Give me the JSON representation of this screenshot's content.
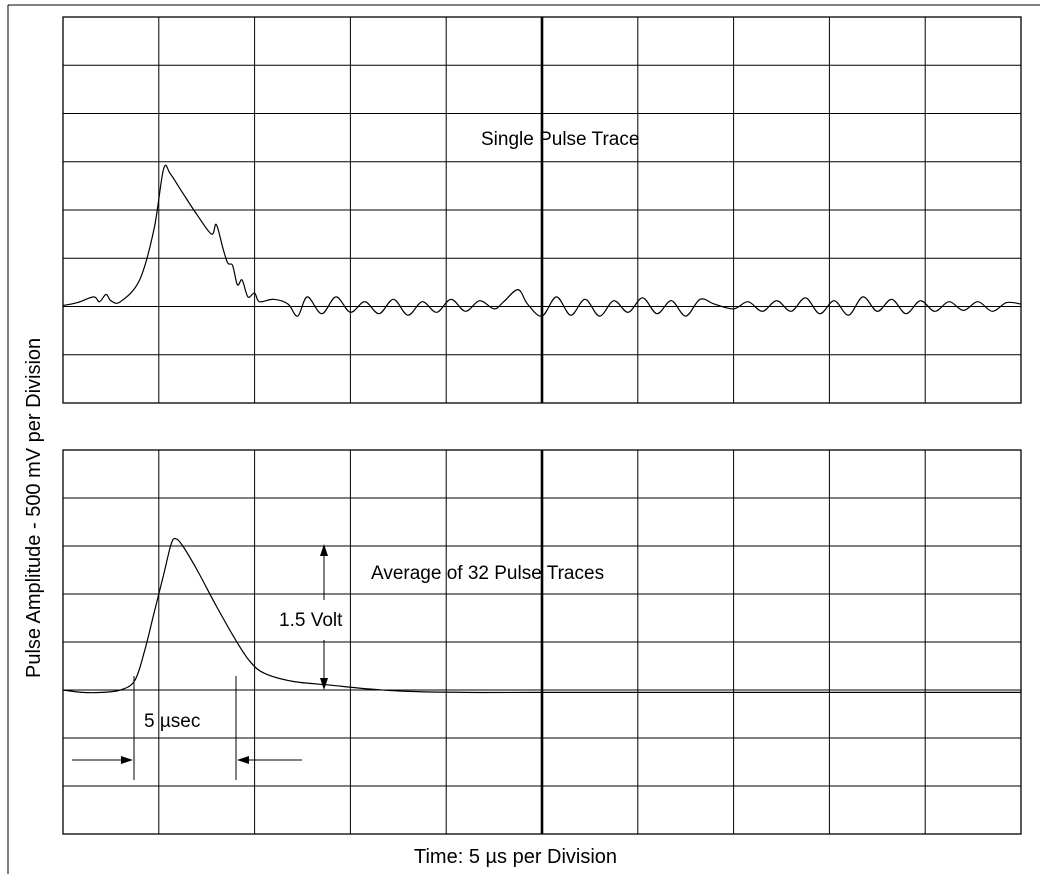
{
  "chart_data": [
    {
      "type": "line",
      "title": "Single Pulse Trace",
      "divisions": {
        "x": 10,
        "y": 8
      },
      "series": [
        {
          "points": [
            [
              0.0,
              0.02
            ],
            [
              0.15,
              0.08
            ],
            [
              0.32,
              0.2
            ],
            [
              0.38,
              0.1
            ],
            [
              0.45,
              0.25
            ],
            [
              0.5,
              0.12
            ],
            [
              0.6,
              0.1
            ],
            [
              0.8,
              0.55
            ],
            [
              0.95,
              1.6
            ],
            [
              1.05,
              2.85
            ],
            [
              1.12,
              2.75
            ],
            [
              1.25,
              2.35
            ],
            [
              1.4,
              1.9
            ],
            [
              1.55,
              1.5
            ],
            [
              1.6,
              1.7
            ],
            [
              1.67,
              1.2
            ],
            [
              1.72,
              0.9
            ],
            [
              1.77,
              0.85
            ],
            [
              1.82,
              0.45
            ],
            [
              1.87,
              0.55
            ],
            [
              1.93,
              0.2
            ],
            [
              2.0,
              0.28
            ],
            [
              2.05,
              0.1
            ],
            [
              2.2,
              0.15
            ],
            [
              2.35,
              0.05
            ],
            [
              2.45,
              -0.2
            ],
            [
              2.55,
              0.2
            ],
            [
              2.7,
              -0.15
            ],
            [
              2.85,
              0.2
            ],
            [
              3.0,
              -0.12
            ],
            [
              3.15,
              0.1
            ],
            [
              3.3,
              -0.15
            ],
            [
              3.45,
              0.15
            ],
            [
              3.6,
              -0.18
            ],
            [
              3.75,
              0.1
            ],
            [
              3.9,
              -0.12
            ],
            [
              4.05,
              0.15
            ],
            [
              4.2,
              -0.1
            ],
            [
              4.35,
              0.12
            ],
            [
              4.5,
              -0.05
            ],
            [
              4.6,
              0.1
            ],
            [
              4.75,
              0.35
            ],
            [
              4.85,
              0.05
            ],
            [
              5.0,
              -0.2
            ],
            [
              5.15,
              0.2
            ],
            [
              5.3,
              -0.18
            ],
            [
              5.45,
              0.15
            ],
            [
              5.6,
              -0.2
            ],
            [
              5.75,
              0.12
            ],
            [
              5.9,
              -0.12
            ],
            [
              6.05,
              0.18
            ],
            [
              6.2,
              -0.15
            ],
            [
              6.35,
              0.12
            ],
            [
              6.5,
              -0.2
            ],
            [
              6.65,
              0.15
            ],
            [
              6.8,
              0.05
            ],
            [
              7.0,
              -0.05
            ],
            [
              7.15,
              0.1
            ],
            [
              7.3,
              -0.1
            ],
            [
              7.45,
              0.12
            ],
            [
              7.6,
              -0.1
            ],
            [
              7.75,
              0.18
            ],
            [
              7.9,
              -0.15
            ],
            [
              8.05,
              0.12
            ],
            [
              8.2,
              -0.18
            ],
            [
              8.35,
              0.2
            ],
            [
              8.5,
              -0.1
            ],
            [
              8.65,
              0.15
            ],
            [
              8.8,
              -0.15
            ],
            [
              8.95,
              0.12
            ],
            [
              9.1,
              -0.1
            ],
            [
              9.25,
              0.1
            ],
            [
              9.4,
              -0.08
            ],
            [
              9.55,
              0.1
            ],
            [
              9.7,
              -0.1
            ],
            [
              9.85,
              0.08
            ],
            [
              10.0,
              0.05
            ]
          ]
        }
      ],
      "xlim": [
        0,
        10
      ],
      "ylim": [
        -2,
        6
      ]
    },
    {
      "type": "line",
      "title": "Average of 32 Pulse Traces",
      "divisions": {
        "x": 10,
        "y": 8
      },
      "series": [
        {
          "points": [
            [
              0.0,
              0.0
            ],
            [
              0.2,
              -0.05
            ],
            [
              0.4,
              -0.05
            ],
            [
              0.6,
              0.0
            ],
            [
              0.75,
              0.2
            ],
            [
              0.85,
              0.8
            ],
            [
              0.95,
              1.6
            ],
            [
              1.05,
              2.4
            ],
            [
              1.13,
              3.05
            ],
            [
              1.18,
              3.15
            ],
            [
              1.25,
              3.0
            ],
            [
              1.4,
              2.5
            ],
            [
              1.6,
              1.75
            ],
            [
              1.8,
              1.05
            ],
            [
              1.95,
              0.6
            ],
            [
              2.1,
              0.35
            ],
            [
              2.4,
              0.18
            ],
            [
              2.8,
              0.1
            ],
            [
              3.2,
              0.02
            ],
            [
              3.6,
              -0.03
            ],
            [
              4.2,
              -0.05
            ],
            [
              5.0,
              -0.05
            ],
            [
              7.0,
              -0.05
            ],
            [
              10.0,
              -0.05
            ]
          ]
        }
      ],
      "xlim": [
        0,
        10
      ],
      "ylim": [
        -3,
        5
      ]
    }
  ],
  "annotations": {
    "amplitude": "1.5 Volt",
    "width": "5 µsec"
  },
  "axes": {
    "xlabel": "Time:  5 µs per Division",
    "ylabel": "Pulse Amplitude - 500 mV per Division"
  }
}
